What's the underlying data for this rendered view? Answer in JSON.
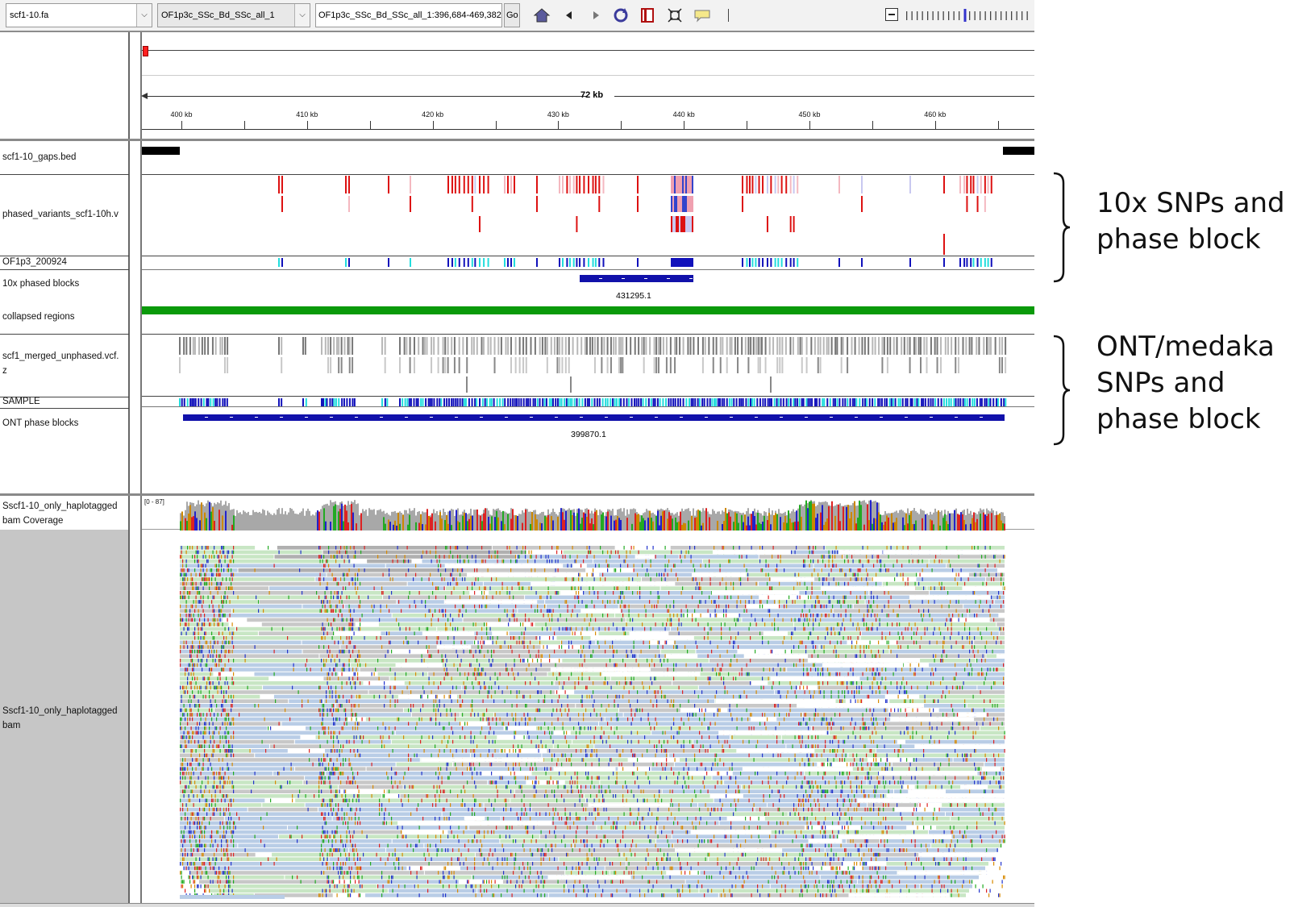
{
  "toolbar": {
    "genome": "scf1-10.fa",
    "chromosome": "OF1p3c_SSc_Bd_SSc_all_1",
    "locus": "OF1p3c_SSc_Bd_SSc_all_1:396,684-469,382",
    "go_label": "Go",
    "icons": [
      "home-icon",
      "back-icon",
      "forward-icon",
      "refresh-icon",
      "region-icon",
      "fit-icon",
      "popup-icon"
    ]
  },
  "ruler": {
    "span_label": "72 kb",
    "ticks": [
      "400 kb",
      "410 kb",
      "420 kb",
      "430 kb",
      "440 kb",
      "450 kb",
      "460 kb"
    ]
  },
  "tracks": {
    "gaps": "scf1-10_gaps.bed",
    "phased_variants": "phased_variants_scf1-10h.v",
    "sample1": "OF1p3_200924",
    "tenx_blocks": "10x phased blocks",
    "tenx_block_id": "431295.1",
    "collapsed": "collapsed regions",
    "merged_line1": "scf1_merged_unphased.vcf.",
    "merged_line2": "z",
    "sample2": "SAMPLE",
    "ont_blocks": "ONT phase blocks",
    "ont_block_id": "399870.1",
    "coverage_line1": "Sscf1-10_only_haplotagged",
    "coverage_line2": "bam Coverage",
    "coverage_range": "[0 - 87]",
    "bam_line1": "Sscf1-10_only_haplotagged",
    "bam_line2": "bam"
  },
  "annotations": {
    "tenx": [
      "10x SNPs and",
      "phase block"
    ],
    "ont": [
      "ONT/medaka",
      "SNPs and",
      "phase block"
    ]
  },
  "colors": {
    "variant_red": "#dd1111",
    "variant_pink": "#f4b8c0",
    "variant_lavender": "#c8c8f0",
    "genotype_blue": "#1111bb",
    "genotype_cyan": "#22dddd",
    "collapsed_green": "#0a9a0a",
    "label_grey": "#c8c8c8"
  }
}
